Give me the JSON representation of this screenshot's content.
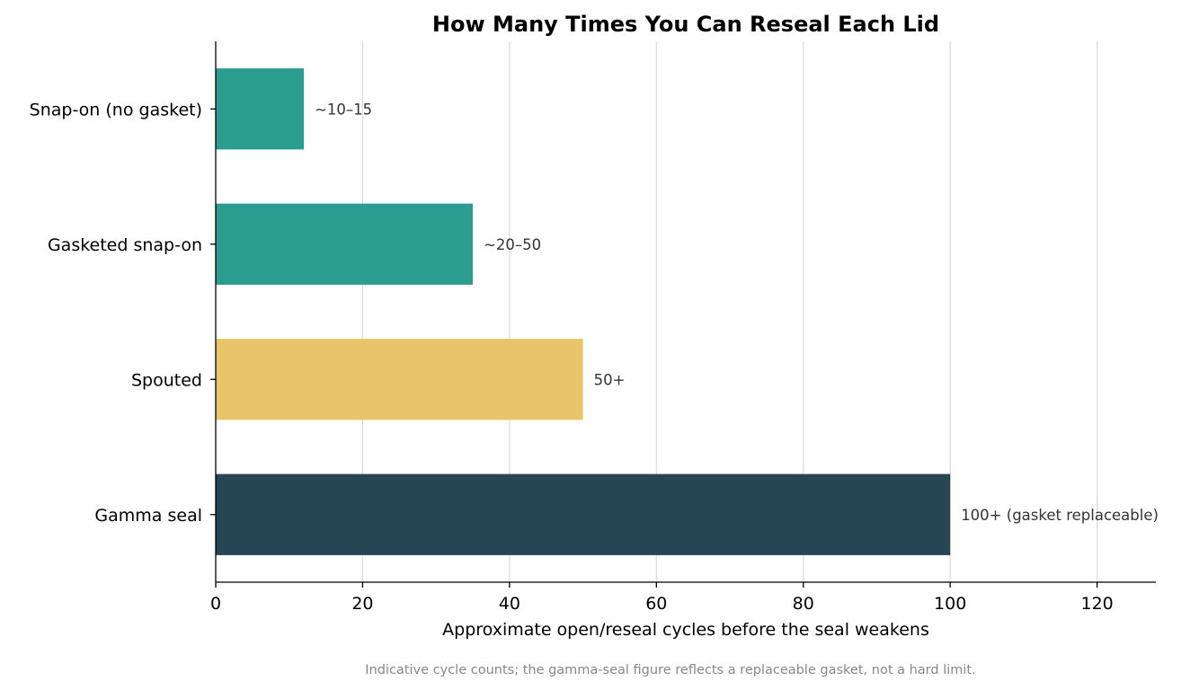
{
  "chart_data": {
    "type": "bar",
    "orientation": "horizontal",
    "title": "How Many Times You Can Reseal Each Lid",
    "xlabel": "Approximate open/reseal cycles before the seal weakens",
    "ylabel": "",
    "xlim": [
      0,
      128
    ],
    "x_ticks": [
      0,
      20,
      40,
      60,
      80,
      100,
      120
    ],
    "grid": "vertical",
    "categories": [
      "Snap-on (no gasket)",
      "Gasketed snap-on",
      "Spouted",
      "Gamma seal"
    ],
    "values": [
      12,
      35,
      50,
      100
    ],
    "data_labels": [
      "~10–15",
      "~20–50",
      "50+",
      "100+ (gasket replaceable)"
    ],
    "colors": [
      "#2a9d8f",
      "#2a9d8f",
      "#e9c46a",
      "#264653"
    ],
    "footnote": "Indicative cycle counts; the gamma-seal figure reflects a replaceable gasket, not a hard limit."
  }
}
